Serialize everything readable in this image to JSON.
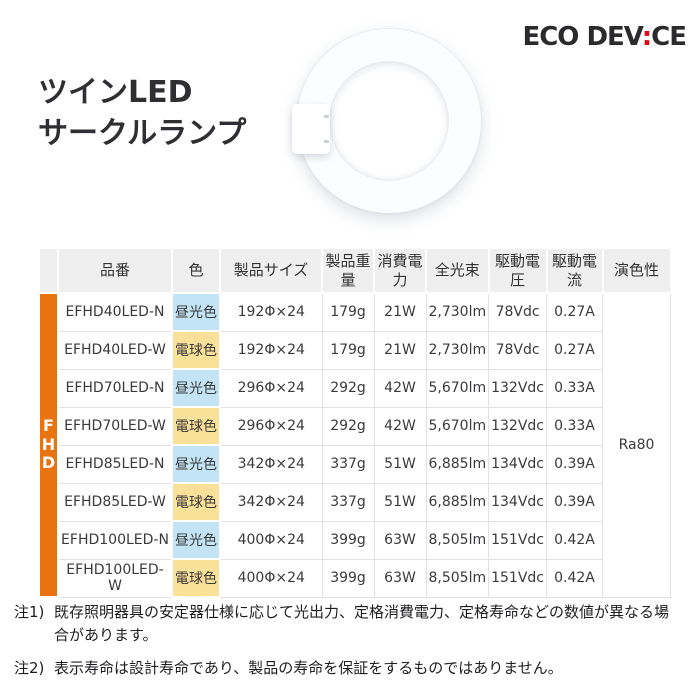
{
  "logo": {
    "text_left": "ECO DEV",
    "separator": ":",
    "text_right": "CE"
  },
  "title": {
    "line1": "ツインLED",
    "line2": "サークルランプ"
  },
  "table": {
    "group_label": "FHD",
    "headers": [
      "品番",
      "色",
      "製品サイズ",
      "製品重量",
      "消費電力",
      "全光束",
      "駆動電圧",
      "駆動電流",
      "演色性"
    ],
    "color_rendering": "Ra80",
    "rows": [
      {
        "model": "EFHD40LED-N",
        "color": "昼光色",
        "tone": "daylight",
        "size": "192Φ×24",
        "weight": "179g",
        "power": "21W",
        "flux": "2,730lm",
        "voltage": "78Vdc",
        "current": "0.27A"
      },
      {
        "model": "EFHD40LED-W",
        "color": "電球色",
        "tone": "warm",
        "size": "192Φ×24",
        "weight": "179g",
        "power": "21W",
        "flux": "2,730lm",
        "voltage": "78Vdc",
        "current": "0.27A"
      },
      {
        "model": "EFHD70LED-N",
        "color": "昼光色",
        "tone": "daylight",
        "size": "296Φ×24",
        "weight": "292g",
        "power": "42W",
        "flux": "5,670lm",
        "voltage": "132Vdc",
        "current": "0.33A"
      },
      {
        "model": "EFHD70LED-W",
        "color": "電球色",
        "tone": "warm",
        "size": "296Φ×24",
        "weight": "292g",
        "power": "42W",
        "flux": "5,670lm",
        "voltage": "132Vdc",
        "current": "0.33A"
      },
      {
        "model": "EFHD85LED-N",
        "color": "昼光色",
        "tone": "daylight",
        "size": "342Φ×24",
        "weight": "337g",
        "power": "51W",
        "flux": "6,885lm",
        "voltage": "134Vdc",
        "current": "0.39A"
      },
      {
        "model": "EFHD85LED-W",
        "color": "電球色",
        "tone": "warm",
        "size": "342Φ×24",
        "weight": "337g",
        "power": "51W",
        "flux": "6,885lm",
        "voltage": "134Vdc",
        "current": "0.39A"
      },
      {
        "model": "EFHD100LED-N",
        "color": "昼光色",
        "tone": "daylight",
        "size": "400Φ×24",
        "weight": "399g",
        "power": "63W",
        "flux": "8,505lm",
        "voltage": "151Vdc",
        "current": "0.42A"
      },
      {
        "model": "EFHD100LED-W",
        "color": "電球色",
        "tone": "warm",
        "size": "400Φ×24",
        "weight": "399g",
        "power": "63W",
        "flux": "8,505lm",
        "voltage": "151Vdc",
        "current": "0.42A"
      }
    ]
  },
  "notes": [
    {
      "label": "注1)",
      "text": "既存照明器具の安定器仕様に応じて光出力、定格消費電力、定格寿命などの数値が異なる場合があります。"
    },
    {
      "label": "注2)",
      "text": "表示寿命は設計寿命であり、製品の寿命を保証をするものではありません。"
    }
  ],
  "colors": {
    "accent_orange": "#E9730F",
    "daylight_blue": "#C3E4F5",
    "warm_yellow": "#FAE199",
    "logo_red": "#E60012",
    "header_gray": "#EFEFEF"
  }
}
